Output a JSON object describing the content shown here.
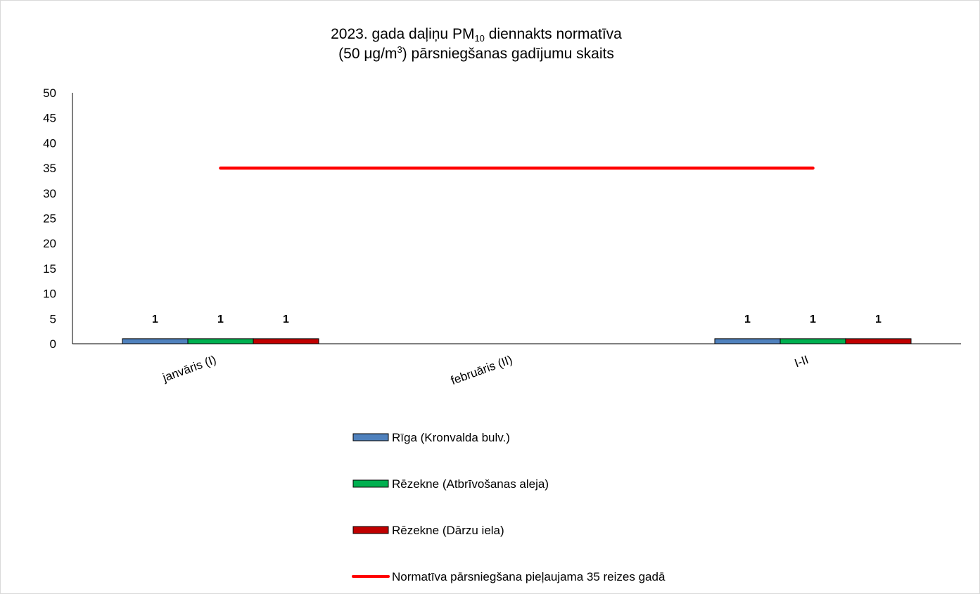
{
  "chart_data": {
    "type": "bar",
    "title_line1_main": "2023. gada daļiņu PM",
    "title_line1_sub": "10",
    "title_line1_rest": " diennakts normatīva",
    "title_line2_main": "(50 μg/m",
    "title_line2_sup": "3",
    "title_line2_rest": ") pārsniegšanas gadījumu skaits",
    "categories": [
      "janvāris (I)",
      "februāris (II)",
      "I-II"
    ],
    "ylim": [
      0,
      50
    ],
    "yticks": [
      0,
      5,
      10,
      15,
      20,
      25,
      30,
      35,
      40,
      45,
      50
    ],
    "grid": false,
    "legend_position": "bottom",
    "series": [
      {
        "name": "Rīga (Kronvalda bulv.)",
        "type": "bar",
        "color": "#4f81bd",
        "values": [
          1,
          0,
          1
        ],
        "labels": [
          "1",
          "",
          "1"
        ]
      },
      {
        "name": "Rēzekne (Atbrīvošanas aleja)",
        "type": "bar",
        "color": "#00b050",
        "values": [
          1,
          0,
          1
        ],
        "labels": [
          "1",
          "",
          "1"
        ]
      },
      {
        "name": "Rēzekne (Dārzu iela)",
        "type": "bar",
        "color": "#c00000",
        "values": [
          1,
          0,
          1
        ],
        "labels": [
          "1",
          "",
          "1"
        ]
      },
      {
        "name": "Normatīva pārsniegšana pieļaujama 35 reizes gadā",
        "type": "line",
        "color": "#ff0000",
        "values": [
          35,
          35,
          35
        ]
      }
    ]
  }
}
